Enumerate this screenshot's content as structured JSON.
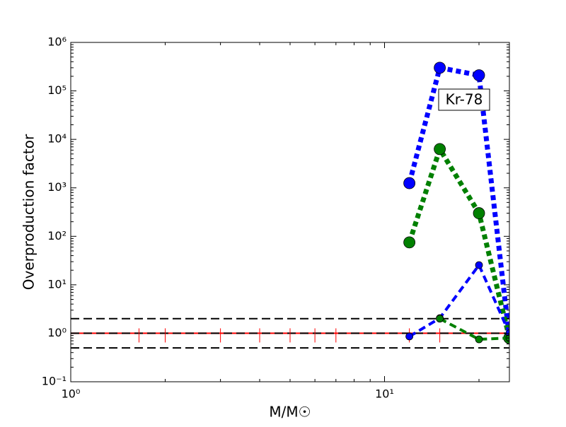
{
  "chart_data": {
    "type": "line",
    "xlabel": "M/M☉",
    "ylabel": "Overproduction factor",
    "annotation": "Kr-78",
    "xscale": "log",
    "yscale": "log",
    "xlim": [
      1,
      25
    ],
    "ylim": [
      0.1,
      1000000
    ],
    "xticks": [
      {
        "value": 1,
        "label": "10⁰"
      },
      {
        "value": 10,
        "label": "10¹"
      }
    ],
    "yticks": [
      {
        "value": 0.1,
        "label": "10⁻¹"
      },
      {
        "value": 1,
        "label": "10⁰"
      },
      {
        "value": 10,
        "label": "10¹"
      },
      {
        "value": 100,
        "label": "10²"
      },
      {
        "value": 1000,
        "label": "10³"
      },
      {
        "value": 10000,
        "label": "10⁴"
      },
      {
        "value": 100000,
        "label": "10⁵"
      },
      {
        "value": 1000000,
        "label": "10⁶"
      }
    ],
    "hlines": [
      {
        "y": 1,
        "color": "#ff0000",
        "linestyle": "solid"
      },
      {
        "y": 0.5,
        "color": "#000000",
        "linestyle": "dashed"
      },
      {
        "y": 1,
        "color": "#000000",
        "linestyle": "dashed"
      },
      {
        "y": 2,
        "color": "#000000",
        "linestyle": "dashed"
      }
    ],
    "series": [
      {
        "color": "#ff0000",
        "linestyle": "none",
        "marker": "vline",
        "x": [
          1.65,
          2,
          3,
          4,
          5,
          6,
          7,
          12,
          15
        ],
        "values": [
          1,
          1,
          1,
          1,
          1,
          1,
          1,
          1,
          1
        ]
      },
      {
        "color": "#0000ff",
        "linestyle": "dotted",
        "width": "thick",
        "marker": "circle",
        "x": [
          12,
          15,
          20,
          25
        ],
        "values": [
          1250,
          300000,
          210000,
          0.8
        ]
      },
      {
        "color": "#008000",
        "linestyle": "dotted",
        "width": "thick",
        "marker": "circle",
        "x": [
          12,
          15,
          20,
          25
        ],
        "values": [
          75,
          6300,
          300,
          0.8
        ]
      },
      {
        "color": "#0000ff",
        "linestyle": "dashed",
        "width": "thin",
        "marker": "circle",
        "x": [
          12,
          15,
          20,
          25
        ],
        "values": [
          0.86,
          2.05,
          25.5,
          1
        ]
      },
      {
        "color": "#008000",
        "linestyle": "dashed",
        "width": "thin",
        "marker": "circle",
        "x": [
          12,
          15,
          20,
          25
        ],
        "values": [
          null,
          2.0,
          0.75,
          0.8
        ]
      }
    ]
  }
}
